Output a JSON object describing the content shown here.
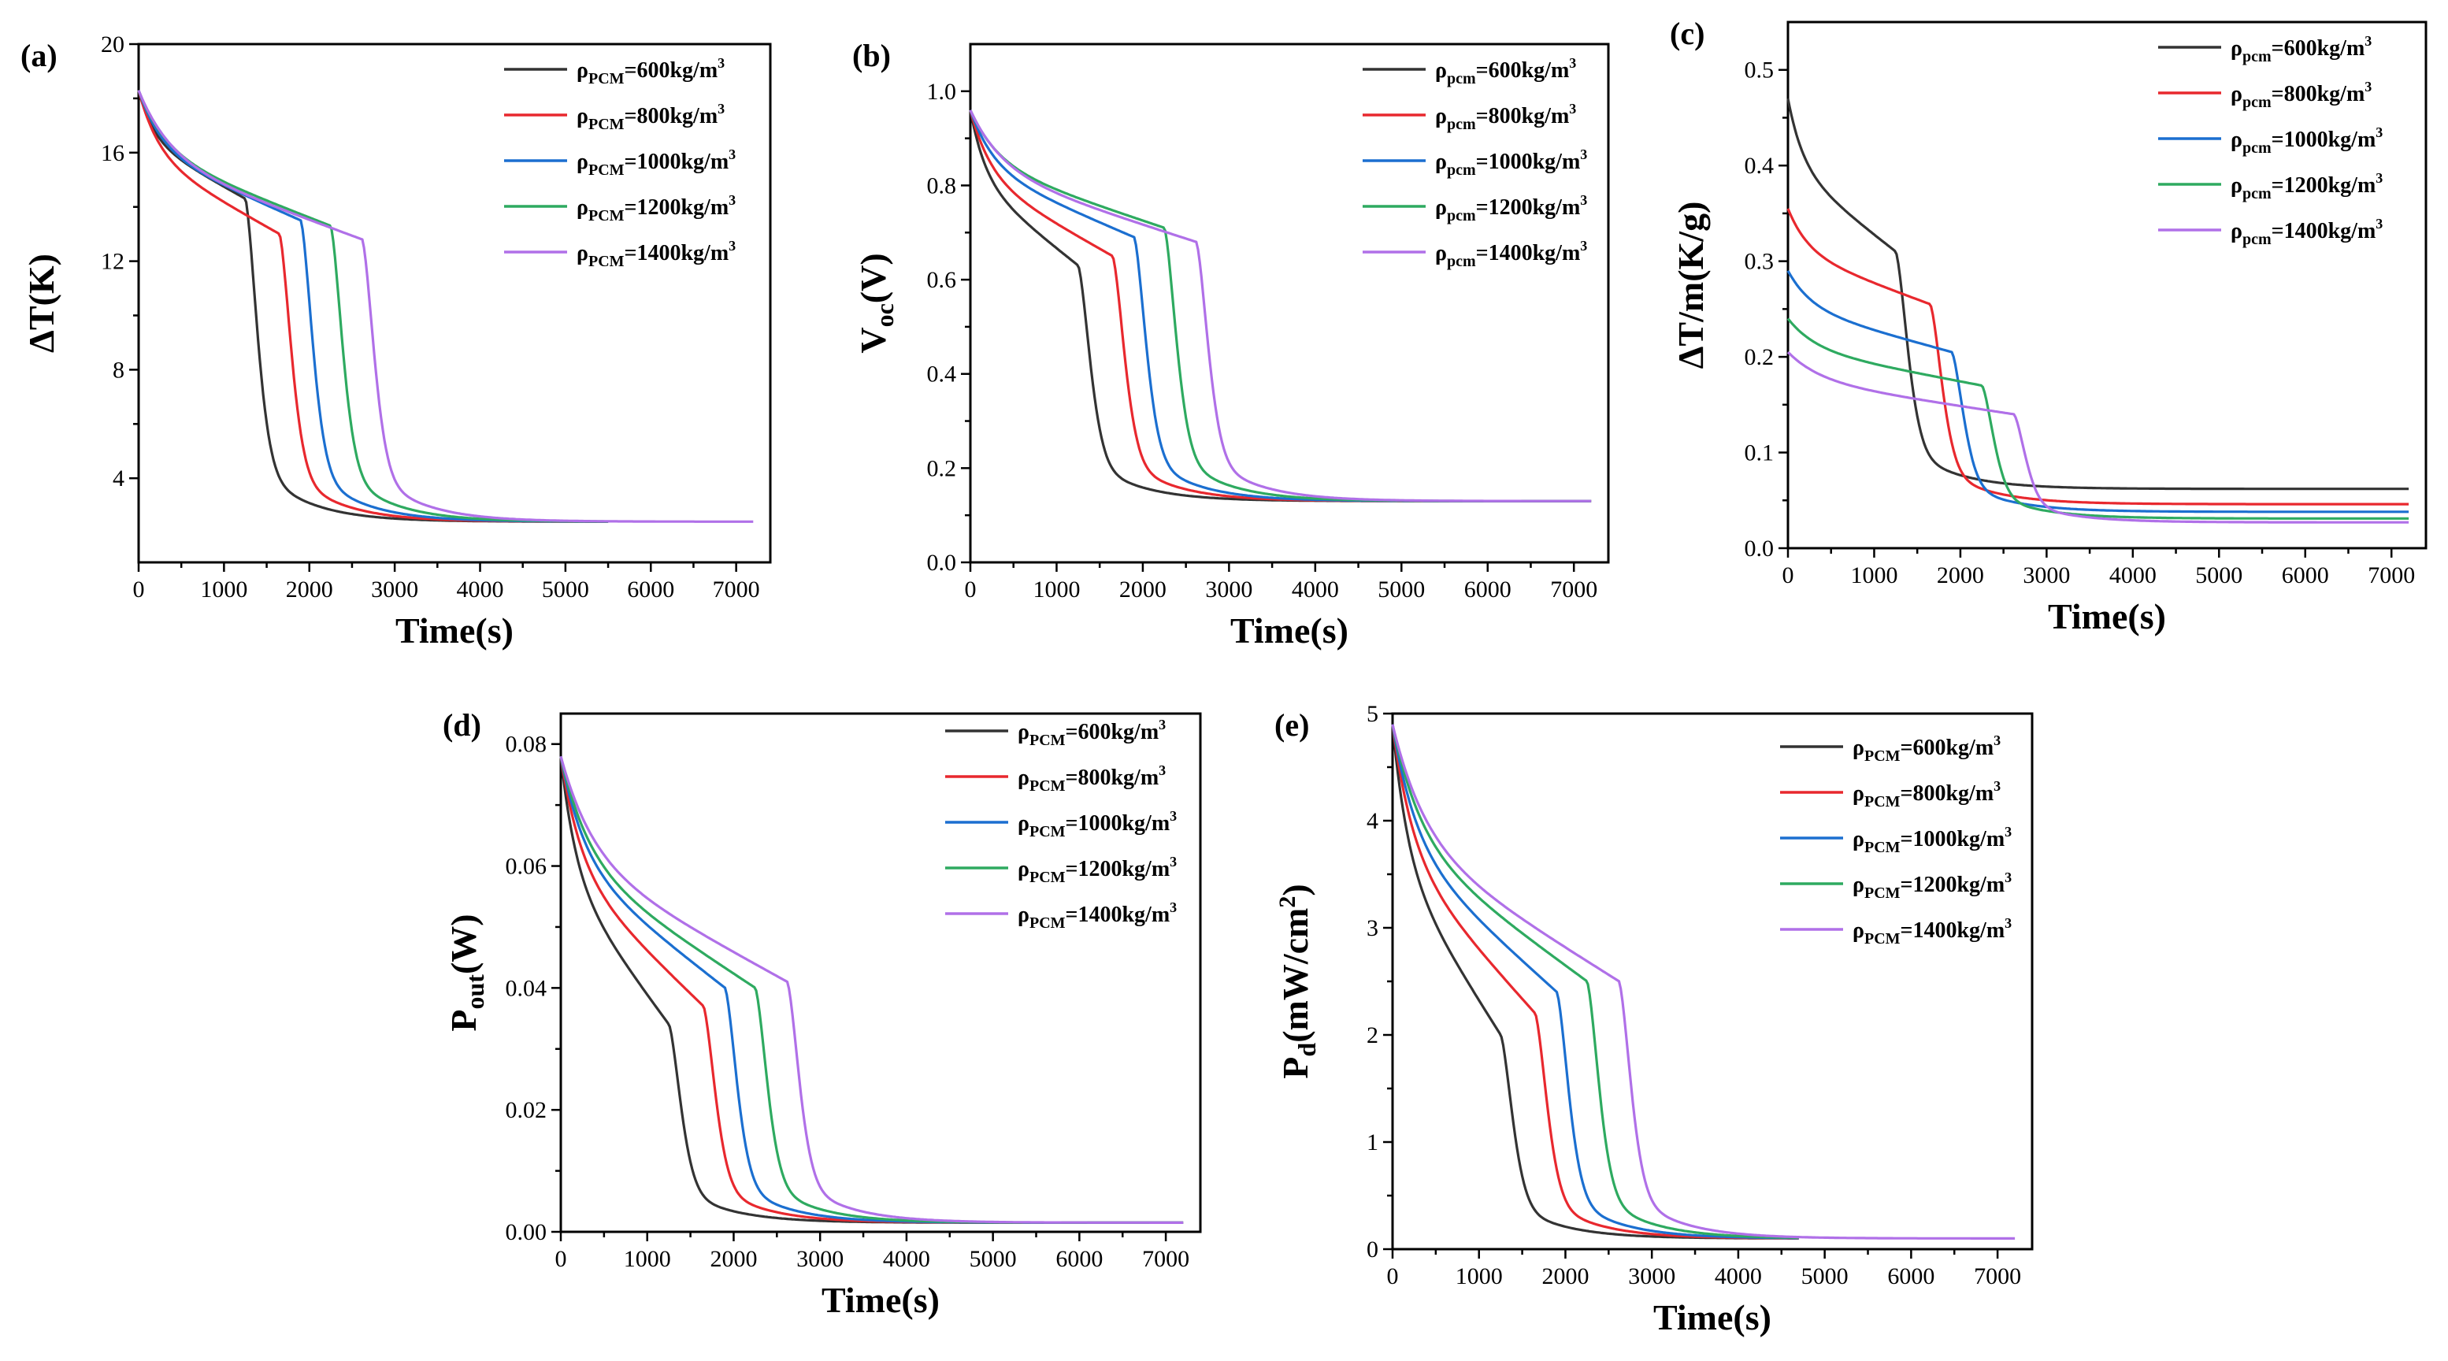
{
  "colors": {
    "s600": "#333333",
    "s800": "#e8282e",
    "s1000": "#1b6fd0",
    "s1200": "#2eaa60",
    "s1400": "#b070e8"
  },
  "chart_data": [
    {
      "panel": "(a)",
      "type": "line",
      "xlabel": "Time(s)",
      "ylabel": "ΔT(K)",
      "xlim": [
        0,
        7400
      ],
      "ylim": [
        0.9,
        20
      ],
      "xticks": [
        0,
        1000,
        2000,
        3000,
        4000,
        5000,
        6000,
        7000
      ],
      "yticks": [
        4,
        8,
        12,
        16,
        20
      ],
      "ydecimals": 0,
      "legend_position": "top-right",
      "legend_sub": "PCM",
      "series": [
        {
          "name": "600kg/m3",
          "density": "600kg/m",
          "color_key": "s600",
          "start": 18.3,
          "knee": 14.3,
          "plateau_end": 1250,
          "floor": 2.4,
          "tail_end": 5500
        },
        {
          "name": "800kg/m3",
          "density": "800kg/m",
          "color_key": "s800",
          "start": 18.3,
          "knee": 13.0,
          "plateau_end": 1650,
          "floor": 2.4,
          "tail_end": 5500
        },
        {
          "name": "1000kg/m3",
          "density": "1000kg/m",
          "color_key": "s1000",
          "start": 18.3,
          "knee": 13.5,
          "plateau_end": 1900,
          "floor": 2.4,
          "tail_end": 5500
        },
        {
          "name": "1200kg/m3",
          "density": "1200kg/m",
          "color_key": "s1200",
          "start": 18.3,
          "knee": 13.3,
          "plateau_end": 2250,
          "floor": 2.4,
          "tail_end": 5500
        },
        {
          "name": "1400kg/m3",
          "density": "1400kg/m",
          "color_key": "s1400",
          "start": 18.3,
          "knee": 12.8,
          "plateau_end": 2620,
          "floor": 2.4,
          "tail_end": 7200
        }
      ]
    },
    {
      "panel": "(b)",
      "type": "line",
      "xlabel": "Time(s)",
      "ylabel": "Voc(V)",
      "xlim": [
        0,
        7400
      ],
      "ylim": [
        0,
        1.1
      ],
      "xticks": [
        0,
        1000,
        2000,
        3000,
        4000,
        5000,
        6000,
        7000
      ],
      "yticks": [
        0.0,
        0.2,
        0.4,
        0.6,
        0.8,
        1.0
      ],
      "ydecimals": 1,
      "legend_position": "top-right",
      "legend_sub": "pcm",
      "series": [
        {
          "name": "600kg/m3",
          "density": "600kg/m",
          "color_key": "s600",
          "start": 0.96,
          "knee": 0.63,
          "plateau_end": 1250,
          "floor": 0.13,
          "tail_end": 7200
        },
        {
          "name": "800kg/m3",
          "density": "800kg/m",
          "color_key": "s800",
          "start": 0.96,
          "knee": 0.65,
          "plateau_end": 1650,
          "floor": 0.13,
          "tail_end": 7200
        },
        {
          "name": "1000kg/m3",
          "density": "1000kg/m",
          "color_key": "s1000",
          "start": 0.96,
          "knee": 0.69,
          "plateau_end": 1900,
          "floor": 0.13,
          "tail_end": 7200
        },
        {
          "name": "1200kg/m3",
          "density": "1200kg/m",
          "color_key": "s1200",
          "start": 0.96,
          "knee": 0.71,
          "plateau_end": 2250,
          "floor": 0.13,
          "tail_end": 7200
        },
        {
          "name": "1400kg/m3",
          "density": "1400kg/m",
          "color_key": "s1400",
          "start": 0.96,
          "knee": 0.68,
          "plateau_end": 2620,
          "floor": 0.13,
          "tail_end": 7200
        }
      ]
    },
    {
      "panel": "(c)",
      "type": "line",
      "xlabel": "Time(s)",
      "ylabel": "ΔT/m(K/g)",
      "xlim": [
        0,
        7400
      ],
      "ylim": [
        0,
        0.55
      ],
      "xticks": [
        0,
        1000,
        2000,
        3000,
        4000,
        5000,
        6000,
        7000
      ],
      "yticks": [
        0.0,
        0.1,
        0.2,
        0.3,
        0.4,
        0.5
      ],
      "ydecimals": 1,
      "legend_position": "top-right",
      "legend_sub": "pcm",
      "series": [
        {
          "name": "600kg/m3",
          "density": "600kg/m",
          "color_key": "s600",
          "start": 0.47,
          "knee": 0.31,
          "plateau_end": 1250,
          "floor": 0.062,
          "tail_end": 7200
        },
        {
          "name": "800kg/m3",
          "density": "800kg/m",
          "color_key": "s800",
          "start": 0.355,
          "knee": 0.255,
          "plateau_end": 1650,
          "floor": 0.046,
          "tail_end": 7200
        },
        {
          "name": "1000kg/m3",
          "density": "1000kg/m",
          "color_key": "s1000",
          "start": 0.29,
          "knee": 0.205,
          "plateau_end": 1900,
          "floor": 0.038,
          "tail_end": 7200
        },
        {
          "name": "1200kg/m3",
          "density": "1200kg/m",
          "color_key": "s1200",
          "start": 0.24,
          "knee": 0.17,
          "plateau_end": 2250,
          "floor": 0.031,
          "tail_end": 7200
        },
        {
          "name": "1400kg/m3",
          "density": "1400kg/m",
          "color_key": "s1400",
          "start": 0.205,
          "knee": 0.14,
          "plateau_end": 2620,
          "floor": 0.027,
          "tail_end": 7200
        }
      ]
    },
    {
      "panel": "(d)",
      "type": "line",
      "xlabel": "Time(s)",
      "ylabel": "Pout(W)",
      "xlim": [
        0,
        7400
      ],
      "ylim": [
        0,
        0.085
      ],
      "xticks": [
        0,
        1000,
        2000,
        3000,
        4000,
        5000,
        6000,
        7000
      ],
      "yticks": [
        0.0,
        0.02,
        0.04,
        0.06,
        0.08
      ],
      "ydecimals": 2,
      "legend_position": "top-right",
      "legend_sub": "PCM",
      "series": [
        {
          "name": "600kg/m3",
          "density": "600kg/m",
          "color_key": "s600",
          "start": 0.078,
          "knee": 0.034,
          "plateau_end": 1250,
          "floor": 0.0015,
          "tail_end": 7200
        },
        {
          "name": "800kg/m3",
          "density": "800kg/m",
          "color_key": "s800",
          "start": 0.078,
          "knee": 0.037,
          "plateau_end": 1650,
          "floor": 0.0015,
          "tail_end": 7200
        },
        {
          "name": "1000kg/m3",
          "density": "1000kg/m",
          "color_key": "s1000",
          "start": 0.078,
          "knee": 0.04,
          "plateau_end": 1900,
          "floor": 0.0015,
          "tail_end": 7200
        },
        {
          "name": "1200kg/m3",
          "density": "1200kg/m",
          "color_key": "s1200",
          "start": 0.078,
          "knee": 0.04,
          "plateau_end": 2250,
          "floor": 0.0015,
          "tail_end": 7200
        },
        {
          "name": "1400kg/m3",
          "density": "1400kg/m",
          "color_key": "s1400",
          "start": 0.078,
          "knee": 0.041,
          "plateau_end": 2620,
          "floor": 0.0015,
          "tail_end": 7200
        }
      ]
    },
    {
      "panel": "(e)",
      "type": "line",
      "xlabel": "Time(s)",
      "ylabel": "Pd(mW/cm2)",
      "xlim": [
        0,
        7400
      ],
      "ylim": [
        0,
        5
      ],
      "xticks": [
        0,
        1000,
        2000,
        3000,
        4000,
        5000,
        6000,
        7000
      ],
      "yticks": [
        0,
        1,
        2,
        3,
        4,
        5
      ],
      "ydecimals": 0,
      "legend_position": "top-right",
      "legend_sub": "PCM",
      "series": [
        {
          "name": "600kg/m3",
          "density": "600kg/m",
          "color_key": "s600",
          "start": 4.9,
          "knee": 2.0,
          "plateau_end": 1250,
          "floor": 0.1,
          "tail_end": 4700
        },
        {
          "name": "800kg/m3",
          "density": "800kg/m",
          "color_key": "s800",
          "start": 4.9,
          "knee": 2.2,
          "plateau_end": 1650,
          "floor": 0.1,
          "tail_end": 4700
        },
        {
          "name": "1000kg/m3",
          "density": "1000kg/m",
          "color_key": "s1000",
          "start": 4.9,
          "knee": 2.4,
          "plateau_end": 1900,
          "floor": 0.1,
          "tail_end": 4700
        },
        {
          "name": "1200kg/m3",
          "density": "1200kg/m",
          "color_key": "s1200",
          "start": 4.9,
          "knee": 2.5,
          "plateau_end": 2250,
          "floor": 0.1,
          "tail_end": 4700
        },
        {
          "name": "1400kg/m3",
          "density": "1400kg/m",
          "color_key": "s1400",
          "start": 4.9,
          "knee": 2.5,
          "plateau_end": 2620,
          "floor": 0.1,
          "tail_end": 7200
        }
      ]
    }
  ]
}
